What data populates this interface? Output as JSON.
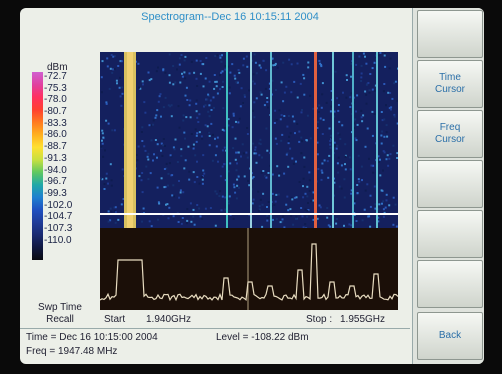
{
  "title": "Spectrogram--Dec 16 10:15:11 2004",
  "legend": {
    "unit": "dBm",
    "levels": [
      "-72.7",
      "-75.3",
      "-78.0",
      "-80.7",
      "-83.3",
      "-86.0",
      "-88.7",
      "-91.3",
      "-94.0",
      "-96.7",
      "-99.3",
      "-102.0",
      "-104.7",
      "-107.3",
      "-110.0"
    ]
  },
  "sweep_time_label": [
    "Swp Time",
    "Recall"
  ],
  "frequency_axis": {
    "start_label": "Start",
    "start_value": "1.940GHz",
    "stop_label": "Stop :",
    "stop_value": "1.955GHz"
  },
  "readouts": {
    "time": "Time = Dec 16 10:15:00 2004",
    "level": "Level = -108.22 dBm",
    "freq": "Freq = 1947.48 MHz"
  },
  "softkeys": [
    {
      "label": ""
    },
    {
      "label": "Time\nCursor"
    },
    {
      "label": "Freq\nCursor"
    },
    {
      "label": ""
    },
    {
      "label": ""
    },
    {
      "label": ""
    },
    {
      "label": "Back"
    }
  ],
  "colors": {
    "title": "#2f8fc8",
    "trace": "#e8dcc0",
    "cursor": "#ffffff"
  }
}
